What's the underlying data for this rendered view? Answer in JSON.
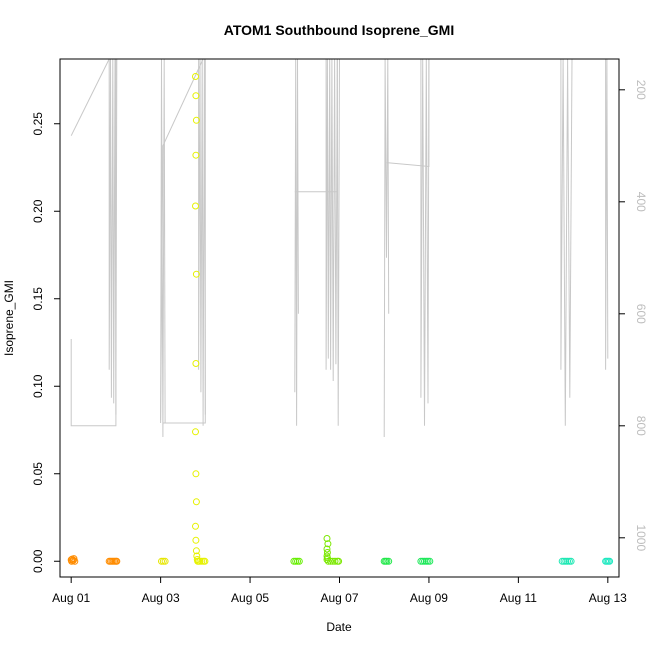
{
  "chart_data": {
    "type": "scatter",
    "title": "ATOM1 Southbound Isoprene_GMI",
    "xlabel": "Date",
    "ylabel": "Isoprene_GMI",
    "x_unit": "days since Aug 01",
    "xlim": [
      -0.25,
      12.25
    ],
    "ylim": [
      -0.009,
      0.287
    ],
    "x_ticks": [
      {
        "label": "Aug 01",
        "value": 0
      },
      {
        "label": "Aug 03",
        "value": 2
      },
      {
        "label": "Aug 05",
        "value": 4
      },
      {
        "label": "Aug 07",
        "value": 6
      },
      {
        "label": "Aug 09",
        "value": 8
      },
      {
        "label": "Aug 11",
        "value": 10
      },
      {
        "label": "Aug 13",
        "value": 12
      }
    ],
    "y_ticks": [
      {
        "label": "0.00",
        "value": 0
      },
      {
        "label": "0.05",
        "value": 0.05
      },
      {
        "label": "0.10",
        "value": 0.1
      },
      {
        "label": "0.15",
        "value": 0.15
      },
      {
        "label": "0.20",
        "value": 0.2
      },
      {
        "label": "0.25",
        "value": 0.25
      }
    ],
    "right_axis": {
      "label_color": "#bdbdbd",
      "reversed": true,
      "ylim": [
        1070,
        145
      ],
      "ticks": [
        {
          "label": "200",
          "value": 200
        },
        {
          "label": "400",
          "value": 400
        },
        {
          "label": "600",
          "value": 600
        },
        {
          "label": "800",
          "value": 800
        },
        {
          "label": "1000",
          "value": 1000
        }
      ]
    },
    "grid": false,
    "legend": "none",
    "series": [
      {
        "color": "#ff8c00",
        "points": [
          [
            0.0,
            0.0008
          ],
          [
            0.02,
            0.0012
          ],
          [
            0.04,
            0.0004
          ],
          [
            0.06,
            0.0015
          ],
          [
            0.08,
            0.0
          ],
          [
            0.01,
            0.0
          ],
          [
            0.05,
            0.0006
          ]
        ]
      },
      {
        "color": "#ff8c00",
        "points": [
          [
            0.85,
            0.0
          ],
          [
            0.88,
            0.0
          ],
          [
            0.91,
            0.0
          ],
          [
            0.94,
            0.0
          ],
          [
            0.97,
            0.0
          ],
          [
            1.0,
            0.0
          ],
          [
            1.02,
            0.0
          ]
        ]
      },
      {
        "color": "#e6e600",
        "points": [
          [
            2.02,
            0.0
          ],
          [
            2.06,
            0.0
          ],
          [
            2.1,
            0.0
          ]
        ]
      },
      {
        "color": "#e6f200",
        "points": [
          [
            2.78,
            0.277
          ],
          [
            2.79,
            0.266
          ],
          [
            2.8,
            0.252
          ],
          [
            2.79,
            0.232
          ],
          [
            2.78,
            0.203
          ],
          [
            2.8,
            0.164
          ],
          [
            2.79,
            0.113
          ],
          [
            2.78,
            0.074
          ],
          [
            2.79,
            0.05
          ],
          [
            2.8,
            0.034
          ],
          [
            2.78,
            0.02
          ],
          [
            2.79,
            0.012
          ],
          [
            2.8,
            0.006
          ],
          [
            2.81,
            0.003
          ],
          [
            2.82,
            0.001
          ],
          [
            2.85,
            0.0
          ],
          [
            2.88,
            0.0
          ],
          [
            2.92,
            0.0
          ],
          [
            2.96,
            0.0
          ],
          [
            2.99,
            0.0
          ],
          [
            2.83,
            0.0
          ]
        ]
      },
      {
        "color": "#66ee00",
        "points": [
          [
            4.98,
            0.0
          ],
          [
            5.02,
            0.0
          ],
          [
            5.06,
            0.0
          ],
          [
            5.1,
            0.0
          ]
        ]
      },
      {
        "color": "#7be800",
        "points": [
          [
            5.72,
            0.013
          ],
          [
            5.74,
            0.01
          ],
          [
            5.72,
            0.007
          ],
          [
            5.73,
            0.005
          ],
          [
            5.72,
            0.003
          ],
          [
            5.73,
            0.002
          ],
          [
            5.72,
            0.001
          ],
          [
            5.75,
            0.0
          ],
          [
            5.8,
            0.0
          ],
          [
            5.85,
            0.0
          ],
          [
            5.9,
            0.0
          ],
          [
            5.95,
            0.0
          ],
          [
            5.98,
            0.0
          ]
        ]
      },
      {
        "color": "#22e84a",
        "points": [
          [
            7.0,
            0.0
          ],
          [
            7.03,
            0.0
          ],
          [
            7.06,
            0.0
          ],
          [
            7.1,
            0.0
          ]
        ]
      },
      {
        "color": "#1ee85a",
        "points": [
          [
            7.82,
            0.0
          ],
          [
            7.86,
            0.0
          ],
          [
            7.9,
            0.0
          ],
          [
            7.94,
            0.0
          ],
          [
            7.98,
            0.0
          ],
          [
            8.02,
            0.0
          ]
        ]
      },
      {
        "color": "#1ee8b4",
        "points": [
          [
            10.98,
            0.0
          ],
          [
            11.02,
            0.0
          ],
          [
            11.06,
            0.0
          ],
          [
            11.1,
            0.0
          ],
          [
            11.14,
            0.0
          ],
          [
            11.18,
            0.0
          ]
        ]
      },
      {
        "color": "#1ee8c0",
        "points": [
          [
            11.95,
            0.0
          ],
          [
            11.98,
            0.0
          ],
          [
            12.01,
            0.0
          ],
          [
            12.04,
            0.0
          ]
        ]
      }
    ],
    "overlay_line": {
      "color": "#c8c8c8",
      "axis": "right",
      "segments": [
        [
          [
            0.0,
            645
          ],
          [
            0.0,
            800
          ],
          [
            1.0,
            800
          ],
          [
            1.0,
            145
          ]
        ],
        [
          [
            0.0,
            282
          ],
          [
            0.85,
            145
          ]
        ],
        [
          [
            0.85,
            145
          ],
          [
            0.85,
            700
          ],
          [
            0.88,
            145
          ],
          [
            0.9,
            750
          ],
          [
            0.93,
            145
          ],
          [
            0.95,
            760
          ],
          [
            0.98,
            145
          ],
          [
            1.0,
            780
          ],
          [
            1.02,
            145
          ]
        ],
        [
          [
            2.0,
            790
          ],
          [
            2.02,
            145
          ],
          [
            2.05,
            820
          ],
          [
            2.08,
            145
          ],
          [
            2.1,
            795
          ]
        ],
        [
          [
            2.0,
            795
          ],
          [
            2.05,
            300
          ],
          [
            2.95,
            145
          ]
        ],
        [
          [
            2.05,
            795
          ],
          [
            3.0,
            795
          ],
          [
            3.0,
            145
          ]
        ],
        [
          [
            2.85,
            145
          ],
          [
            2.85,
            700
          ],
          [
            2.88,
            145
          ],
          [
            2.9,
            740
          ],
          [
            2.93,
            145
          ],
          [
            2.95,
            800
          ],
          [
            2.98,
            145
          ],
          [
            3.0,
            780
          ]
        ],
        [
          [
            5.0,
            740
          ],
          [
            5.02,
            145
          ],
          [
            5.04,
            800
          ],
          [
            5.06,
            145
          ],
          [
            5.08,
            600
          ]
        ],
        [
          [
            5.0,
            382
          ],
          [
            5.95,
            382
          ],
          [
            5.95,
            145
          ]
        ],
        [
          [
            5.7,
            145
          ],
          [
            5.7,
            700
          ],
          [
            5.73,
            145
          ],
          [
            5.75,
            680
          ],
          [
            5.78,
            145
          ],
          [
            5.8,
            700
          ],
          [
            5.83,
            145
          ],
          [
            5.86,
            720
          ],
          [
            5.89,
            145
          ],
          [
            5.92,
            690
          ],
          [
            5.95,
            145
          ],
          [
            5.97,
            800
          ],
          [
            6.0,
            145
          ]
        ],
        [
          [
            7.0,
            820
          ],
          [
            7.02,
            145
          ],
          [
            7.05,
            500
          ],
          [
            7.08,
            145
          ],
          [
            7.1,
            600
          ]
        ],
        [
          [
            7.05,
            330
          ],
          [
            8.0,
            337
          ],
          [
            8.0,
            145
          ]
        ],
        [
          [
            7.82,
            145
          ],
          [
            7.82,
            750
          ],
          [
            7.86,
            145
          ],
          [
            7.9,
            800
          ],
          [
            7.94,
            145
          ],
          [
            7.98,
            760
          ],
          [
            8.0,
            145
          ]
        ],
        [
          [
            10.95,
            145
          ],
          [
            10.95,
            700
          ],
          [
            11.0,
            145
          ],
          [
            11.05,
            800
          ],
          [
            11.1,
            145
          ],
          [
            11.15,
            750
          ],
          [
            11.2,
            145
          ]
        ],
        [
          [
            11.95,
            145
          ],
          [
            11.95,
            700
          ],
          [
            11.98,
            145
          ],
          [
            12.0,
            680
          ]
        ]
      ]
    }
  }
}
